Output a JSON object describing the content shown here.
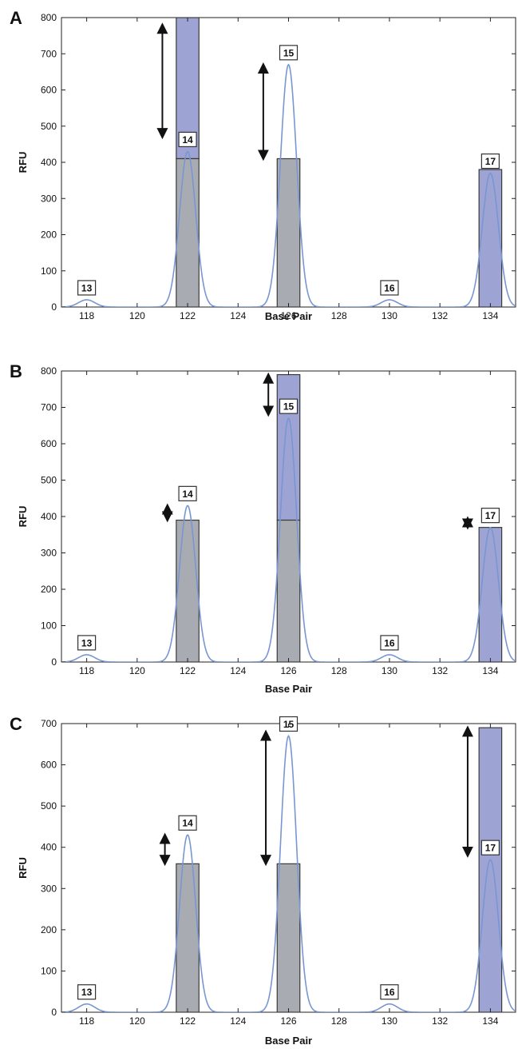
{
  "colors": {
    "peak_line": "#7896d2",
    "gray_bar": "#a8acb2",
    "blue_bar": "#9da4d4",
    "bar_stroke": "#3a3a3a",
    "axis": "#222222"
  },
  "chart_data": [
    {
      "type": "bar+line",
      "panel": "A",
      "xlabel": "Base Pair",
      "ylabel": "RFU",
      "xlim": [
        117,
        135
      ],
      "ylim": [
        0,
        800
      ],
      "xticks": [
        118,
        120,
        122,
        124,
        126,
        128,
        130,
        132,
        134
      ],
      "yticks": [
        0,
        100,
        200,
        300,
        400,
        500,
        600,
        700,
        800
      ],
      "peaks": [
        {
          "label": "13",
          "bp": 118,
          "height": 20
        },
        {
          "label": "14",
          "bp": 122,
          "height": 430
        },
        {
          "label": "15",
          "bp": 126,
          "height": 670
        },
        {
          "label": "16",
          "bp": 130,
          "height": 20
        },
        {
          "label": "17",
          "bp": 134,
          "height": 370
        }
      ],
      "bars": [
        {
          "bp": 122,
          "gray": 410,
          "blue_top": 800
        },
        {
          "bp": 126,
          "gray": 410,
          "blue_top": 0
        },
        {
          "bp": 134,
          "gray": 0,
          "blue_top": 380
        }
      ],
      "arrows": [
        {
          "x_bp": 121,
          "y_from": 470,
          "y_to": 780
        },
        {
          "x_bp": 125,
          "y_from": 410,
          "y_to": 670
        }
      ]
    },
    {
      "type": "bar+line",
      "panel": "B",
      "xlabel": "Base Pair",
      "ylabel": "RFU",
      "xlim": [
        117,
        135
      ],
      "ylim": [
        0,
        800
      ],
      "xticks": [
        118,
        120,
        122,
        124,
        126,
        128,
        130,
        132,
        134
      ],
      "yticks": [
        0,
        100,
        200,
        300,
        400,
        500,
        600,
        700,
        800
      ],
      "peaks": [
        {
          "label": "13",
          "bp": 118,
          "height": 20
        },
        {
          "label": "14",
          "bp": 122,
          "height": 430
        },
        {
          "label": "15",
          "bp": 126,
          "height": 670
        },
        {
          "label": "16",
          "bp": 130,
          "height": 20
        },
        {
          "label": "17",
          "bp": 134,
          "height": 370
        }
      ],
      "bars": [
        {
          "bp": 122,
          "gray": 390,
          "blue_top": 0
        },
        {
          "bp": 126,
          "gray": 390,
          "blue_top": 790
        },
        {
          "bp": 134,
          "gray": 0,
          "blue_top": 370
        }
      ],
      "arrows": [
        {
          "x_bp": 121.2,
          "y_from": 390,
          "y_to": 430
        },
        {
          "x_bp": 125.2,
          "y_from": 680,
          "y_to": 790
        },
        {
          "x_bp": 133.1,
          "y_from": 370,
          "y_to": 395
        }
      ]
    },
    {
      "type": "bar+line",
      "panel": "C",
      "xlabel": "Base Pair",
      "ylabel": "RFU",
      "xlim": [
        117,
        135
      ],
      "ylim": [
        0,
        700
      ],
      "xticks": [
        118,
        120,
        122,
        124,
        126,
        128,
        130,
        132,
        134
      ],
      "yticks": [
        0,
        100,
        200,
        300,
        400,
        500,
        600,
        700
      ],
      "peaks": [
        {
          "label": "13",
          "bp": 118,
          "height": 20
        },
        {
          "label": "14",
          "bp": 122,
          "height": 430
        },
        {
          "label": "15",
          "bp": 126,
          "height": 670
        },
        {
          "label": "16",
          "bp": 130,
          "height": 20
        },
        {
          "label": "17",
          "bp": 134,
          "height": 370
        }
      ],
      "bars": [
        {
          "bp": 122,
          "gray": 360,
          "blue_top": 0
        },
        {
          "bp": 126,
          "gray": 360,
          "blue_top": 0
        },
        {
          "bp": 134,
          "gray": 0,
          "blue_top": 690
        }
      ],
      "arrows": [
        {
          "x_bp": 121.1,
          "y_from": 360,
          "y_to": 430
        },
        {
          "x_bp": 125.1,
          "y_from": 360,
          "y_to": 680
        },
        {
          "x_bp": 133.1,
          "y_from": 380,
          "y_to": 690
        }
      ]
    }
  ]
}
